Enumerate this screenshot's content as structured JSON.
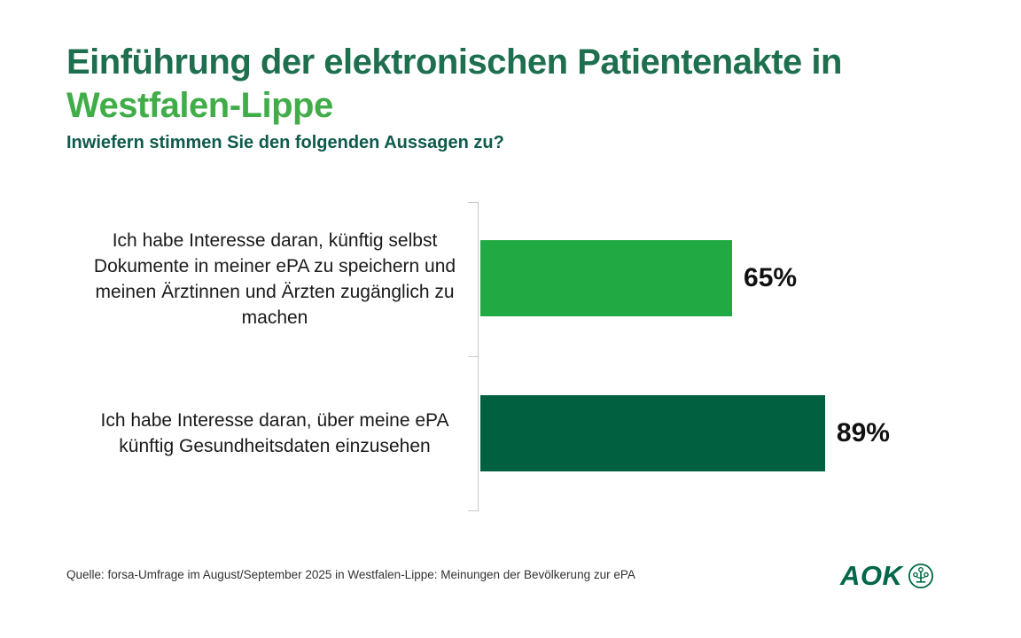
{
  "header": {
    "title_line1": "Einführung der elektronischen Patientenakte in",
    "title_line2": "Westfalen-Lippe",
    "subtitle": "Inwiefern stimmen Sie den folgenden Aussagen zu?"
  },
  "chart_data": {
    "type": "bar",
    "orientation": "horizontal",
    "title": "Einführung der elektronischen Patientenakte in Westfalen-Lippe",
    "subtitle": "Inwiefern stimmen Sie den folgenden Aussagen zu?",
    "categories": [
      "Ich habe Interesse daran, künftig selbst Dokumente in meiner ePA zu speichern und meinen Ärztinnen und Ärzten zugänglich zu machen",
      "Ich habe Interesse daran, über meine ePA künftig Gesundheitsdaten einzusehen"
    ],
    "values": [
      65,
      89
    ],
    "value_labels": [
      "65%",
      "89%"
    ],
    "bar_colors": [
      "#21a944",
      "#00603f"
    ],
    "xlabel": "",
    "ylabel": "",
    "xlim": [
      0,
      100
    ],
    "grid": false,
    "legend": false
  },
  "footer": {
    "source": "Quelle: forsa-Umfrage im August/September 2025 in Westfalen-Lippe: Meinungen der Bevölkerung zur ePA",
    "logo_text": "AOK"
  },
  "colors": {
    "background": "#ffffff",
    "title_primary": "#1d6f4e",
    "title_accent": "#41ad49",
    "subtitle": "#0e5a4c",
    "label_text": "#1a1a1a",
    "value_text": "#111111",
    "axis": "#c9c9c9",
    "source_text": "#323232",
    "logo": "#006747"
  }
}
